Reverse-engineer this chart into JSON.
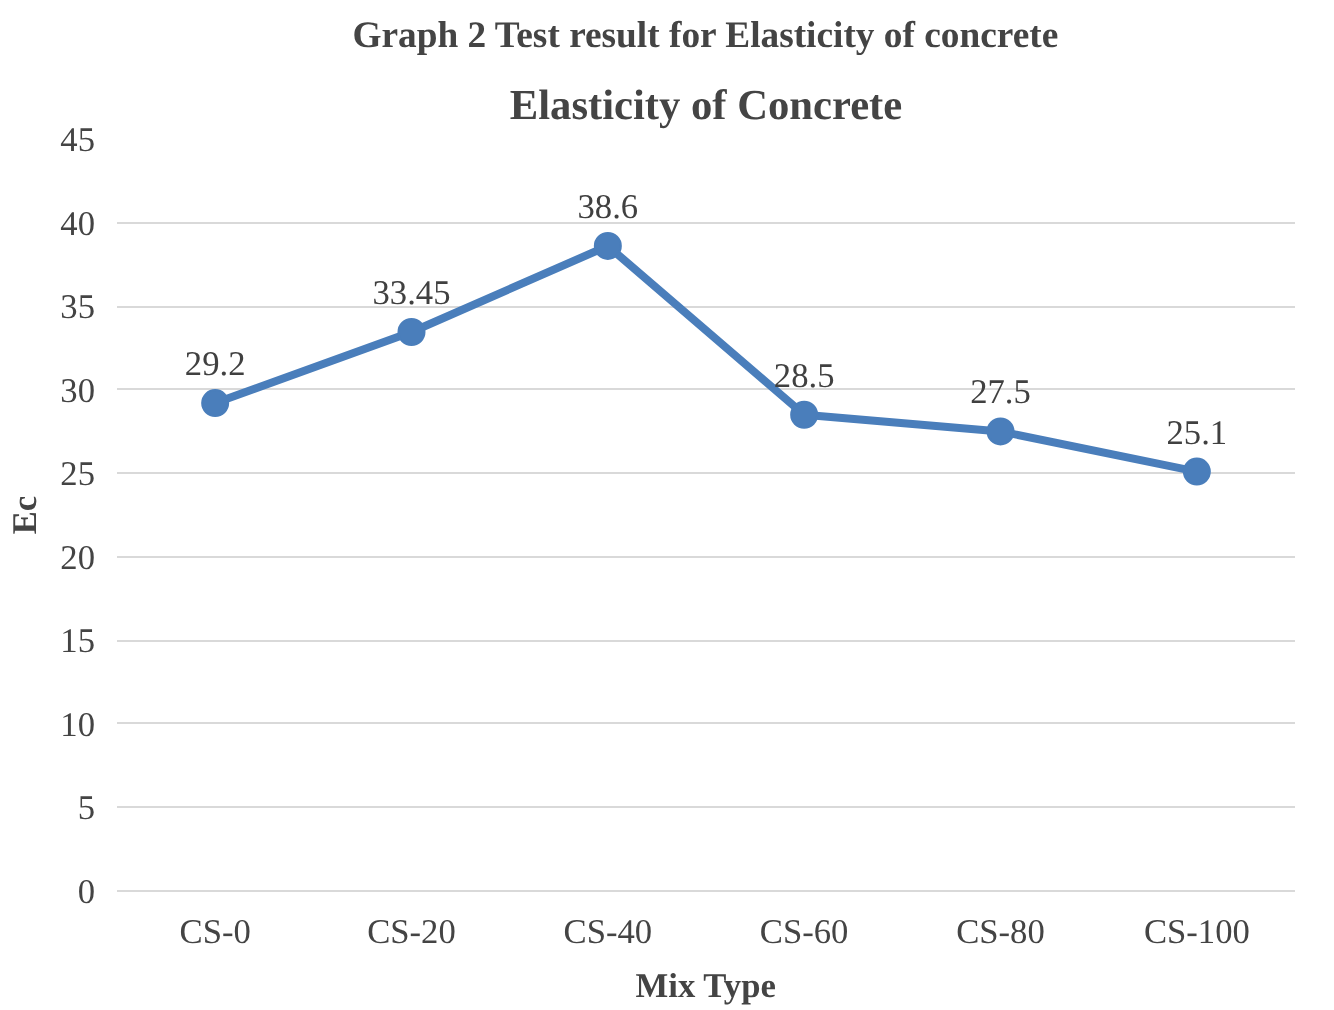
{
  "chart_data": {
    "type": "line",
    "title": "Elasticity of Concrete",
    "xlabel": "Mix Type",
    "ylabel": "Ec",
    "annotations": [
      "Graph 2 Test result for Elasticity of concrete"
    ],
    "categories": [
      "CS-0",
      "CS-20",
      "CS-40",
      "CS-60",
      "CS-80",
      "CS-100"
    ],
    "series": [
      {
        "color": "#4a7ebb",
        "values": [
          29.2,
          33.45,
          38.6,
          28.5,
          27.5,
          25.1
        ]
      }
    ],
    "ylim": [
      0,
      45
    ],
    "yticks": [
      0,
      5,
      10,
      15,
      20,
      25,
      30,
      35,
      40,
      45
    ],
    "grid": "y",
    "marker": "circle",
    "line_style": "solid",
    "data_labels": true
  }
}
